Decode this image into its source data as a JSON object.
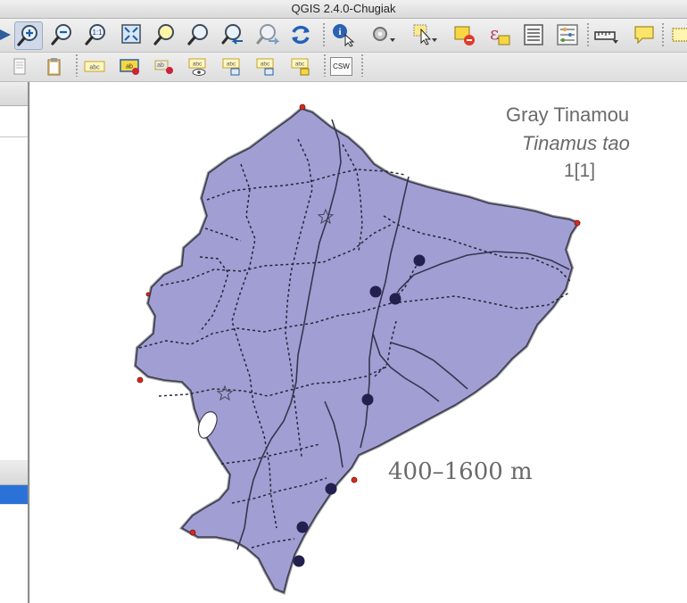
{
  "window": {
    "title": "QGIS 2.4.0-Chugiak"
  },
  "toolbar_main": {
    "icons": [
      "pan-arrow-icon",
      "zoom-in-icon",
      "zoom-out-icon",
      "zoom-native-icon",
      "zoom-full-icon",
      "zoom-to-selection-icon",
      "zoom-to-layer-icon",
      "zoom-last-icon",
      "zoom-next-icon",
      "refresh-icon",
      "identify-icon",
      "action-icon",
      "select-icon",
      "deselect-icon",
      "expression-icon",
      "attribute-table-icon",
      "statistics-icon",
      "measure-icon",
      "map-tips-icon",
      "annotation-icon"
    ]
  },
  "toolbar_labels": {
    "icons": [
      "new-layer-icon",
      "clipboard-icon",
      "layer-labeling-icon",
      "label-highlight-icon",
      "pin-label-icon",
      "show-hide-label-icon",
      "move-label-icon",
      "rotate-label-icon",
      "change-label-icon"
    ],
    "csw_label": "CSW"
  },
  "map": {
    "legend": {
      "title": "Gray Tinamou",
      "species": "Tinamus tao",
      "count": "1[1]"
    },
    "elevation": "400–1600 m",
    "colors": {
      "country_fill": "#a19ed3",
      "outline": "#3c3c50",
      "record_dot": "#23204f",
      "point_red": "#d82a1e"
    }
  }
}
